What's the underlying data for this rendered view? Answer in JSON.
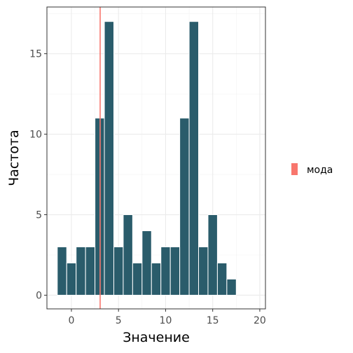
{
  "chart_data": {
    "type": "bar",
    "title": "",
    "xlabel": "Значение",
    "ylabel": "Частота",
    "xlim": [
      -2.6,
      20.6
    ],
    "ylim": [
      -0.85,
      17.9
    ],
    "bin_width": 1,
    "x_ticks": [
      0,
      5,
      10,
      15,
      20
    ],
    "y_ticks": [
      0,
      5,
      10,
      15
    ],
    "x_tick_labels": [
      "0",
      "5",
      "10",
      "15",
      "20"
    ],
    "y_tick_labels": [
      "0",
      "5",
      "10",
      "15"
    ],
    "bins": [
      {
        "x": -1,
        "count": 3
      },
      {
        "x": 0,
        "count": 2
      },
      {
        "x": 1,
        "count": 3
      },
      {
        "x": 2,
        "count": 3
      },
      {
        "x": 3,
        "count": 11
      },
      {
        "x": 4,
        "count": 17
      },
      {
        "x": 5,
        "count": 3
      },
      {
        "x": 6,
        "count": 5
      },
      {
        "x": 7,
        "count": 2
      },
      {
        "x": 8,
        "count": 4
      },
      {
        "x": 9,
        "count": 2
      },
      {
        "x": 10,
        "count": 3
      },
      {
        "x": 11,
        "count": 3
      },
      {
        "x": 12,
        "count": 11
      },
      {
        "x": 13,
        "count": 17
      },
      {
        "x": 14,
        "count": 3
      },
      {
        "x": 15,
        "count": 5
      },
      {
        "x": 16,
        "count": 2
      },
      {
        "x": 17,
        "count": 1
      }
    ],
    "mode_line": {
      "x": 3.05,
      "label": "мода",
      "color": "#f8766d"
    },
    "bar_color": "#2a5c6b",
    "bar_edge_color": "#ffffff",
    "grid": true,
    "legend": {
      "placement": "right",
      "entries": [
        "мода"
      ]
    }
  }
}
